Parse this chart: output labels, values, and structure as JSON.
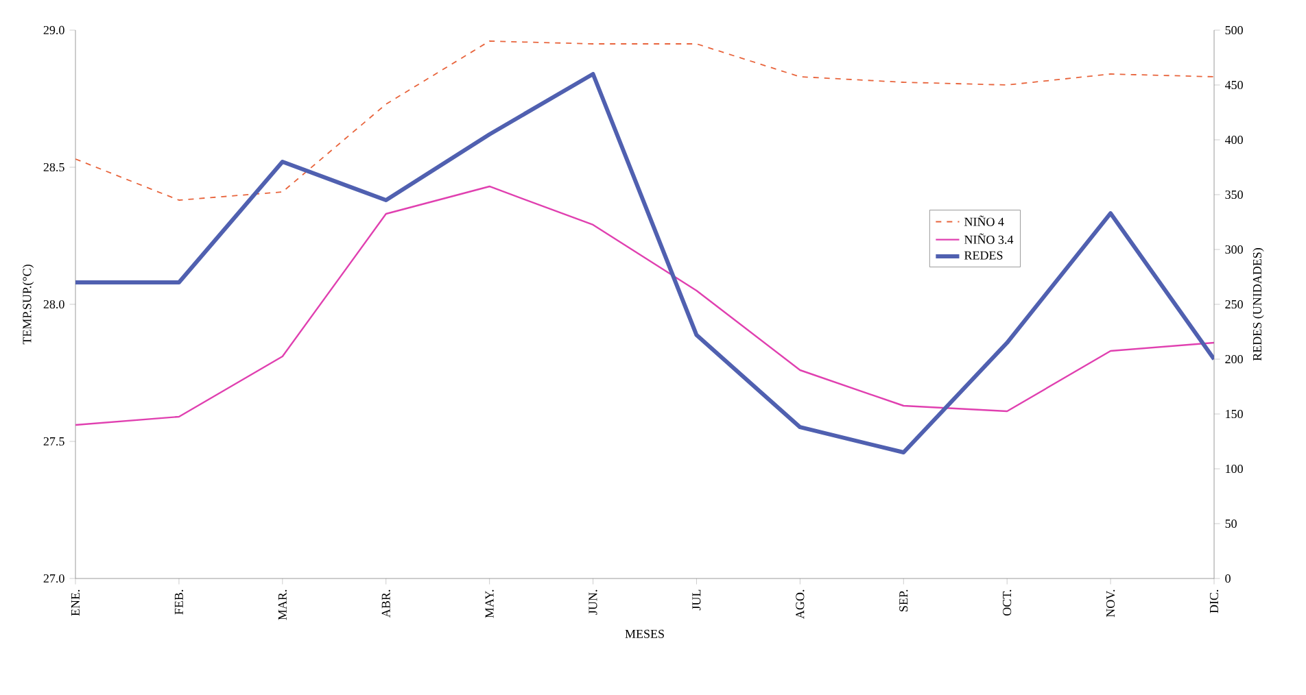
{
  "chart_data": {
    "type": "line",
    "xlabel": "MESES",
    "ylabel": "TEMP.SUP.(°C)",
    "y2label": "REDES (UNIDADES)",
    "categories": [
      "ENE.",
      "FEB.",
      "MAR.",
      "ABR.",
      "MAY.",
      "JUN.",
      "JUL",
      "AGO.",
      "SEP.",
      "OCT.",
      "NOV.",
      "DIC."
    ],
    "series": [
      {
        "name": "NIÑO 4",
        "color": "#e8643c",
        "line_style": "dashed",
        "values": [
          28.53,
          28.38,
          28.41,
          28.73,
          28.96,
          28.95,
          28.95,
          28.83,
          28.81,
          28.8,
          28.84,
          28.83
        ]
      },
      {
        "name": "NIÑO 3.4",
        "color": "#e040b0",
        "line_style": "solid",
        "values": [
          27.56,
          27.59,
          27.81,
          28.33,
          28.43,
          28.29,
          28.05,
          27.76,
          27.63,
          27.61,
          27.83,
          27.86
        ]
      },
      {
        "name": "REDES",
        "color": "#5060b0",
        "line_style": "solid",
        "axis": "y2",
        "values": [
          270,
          270,
          380,
          345,
          405,
          460,
          222,
          138,
          115,
          215,
          333,
          200
        ]
      }
    ],
    "ylim": [
      27.0,
      29.0
    ],
    "yticks": [
      {
        "value": 27.0,
        "label": "27.0"
      },
      {
        "value": 27.5,
        "label": "27.5"
      },
      {
        "value": 28.0,
        "label": "28.0"
      },
      {
        "value": 28.5,
        "label": "28.5"
      },
      {
        "value": 29.0,
        "label": "29.0"
      }
    ],
    "y2lim": [
      0,
      500
    ],
    "y2ticks": [
      0,
      50,
      100,
      150,
      200,
      250,
      300,
      350,
      400,
      450,
      500
    ],
    "grid": false,
    "legend": "right",
    "marker": "none"
  }
}
